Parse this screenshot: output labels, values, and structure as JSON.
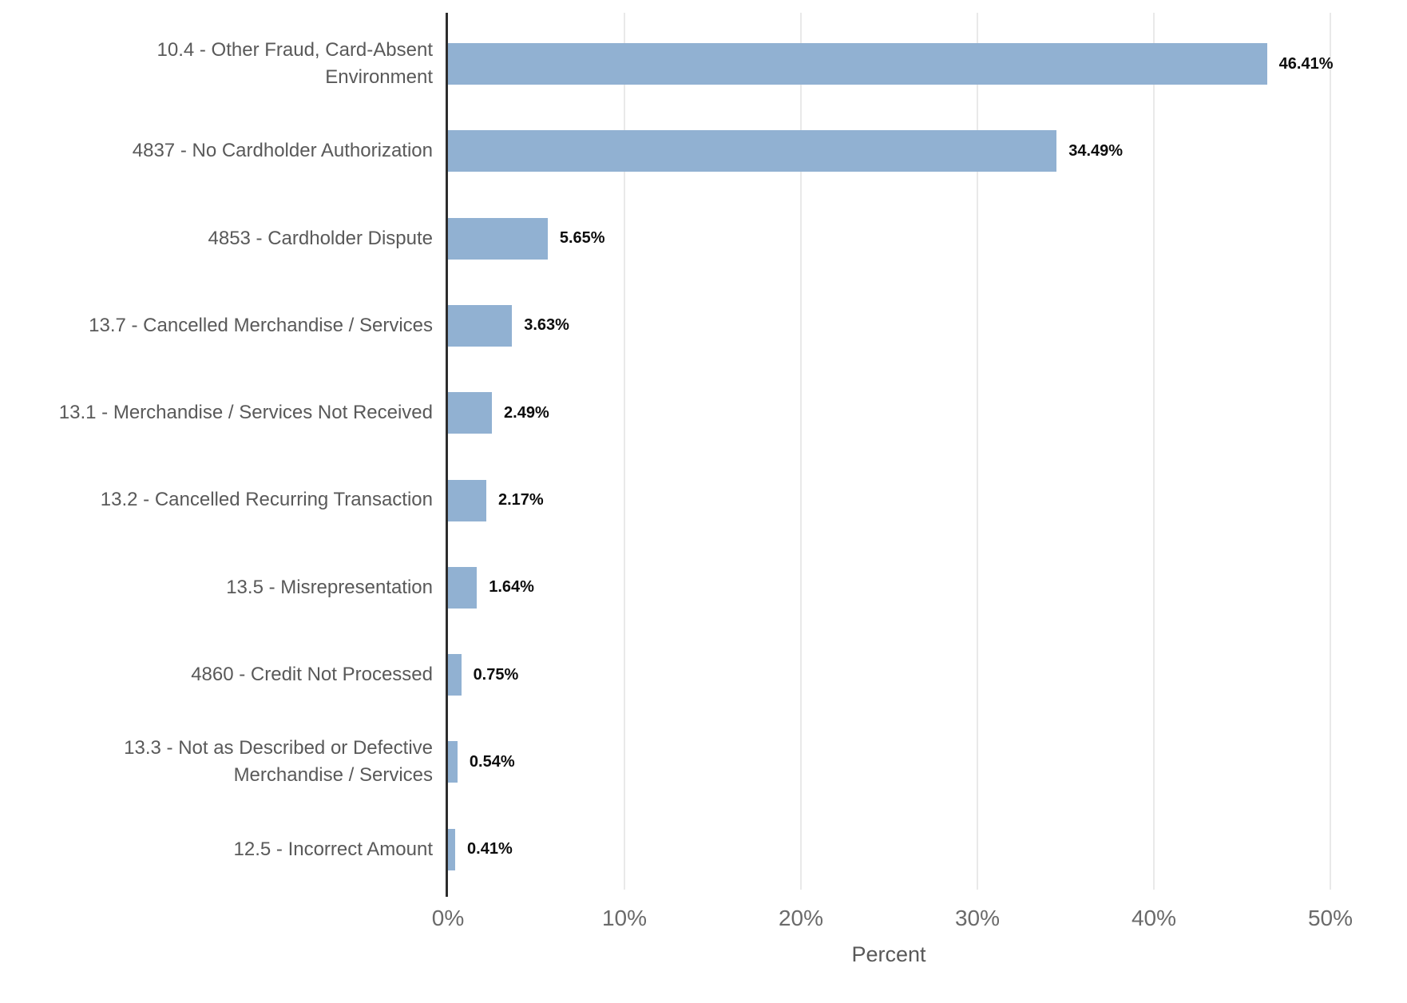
{
  "chart_data": {
    "type": "bar",
    "orientation": "horizontal",
    "title": "",
    "xlabel": "Percent",
    "ylabel": "",
    "categories": [
      "10.4 - Other Fraud, Card-Absent Environment",
      "4837 - No Cardholder Authorization",
      "4853 - Cardholder Dispute",
      "13.7 - Cancelled Merchandise / Services",
      "13.1 - Merchandise / Services Not Received",
      "13.2 - Cancelled Recurring Transaction",
      "13.5 - Misrepresentation",
      "4860 - Credit Not Processed",
      "13.3 - Not as Described or Defective Merchandise / Services",
      "12.5 - Incorrect Amount"
    ],
    "values": [
      46.41,
      34.49,
      5.65,
      3.63,
      2.49,
      2.17,
      1.64,
      0.75,
      0.54,
      0.41
    ],
    "value_labels": [
      "46.41%",
      "34.49%",
      "5.65%",
      "3.63%",
      "2.49%",
      "2.17%",
      "1.64%",
      "0.75%",
      "0.54%",
      "0.41%"
    ],
    "x_tick_labels": [
      "0%",
      "10%",
      "20%",
      "30%",
      "40%",
      "50%"
    ],
    "x_tick_values": [
      0,
      10,
      20,
      30,
      40,
      50
    ],
    "xlim": [
      0,
      50
    ],
    "grid": "vertical-gridlines",
    "legend_position": "none",
    "colors": {
      "bar": "#91B1D2",
      "category_label": "#595959",
      "tick_label": "#6A6A6A",
      "value_label": "#0D0D0D",
      "gridline": "#E9E9E9",
      "axis_line": "#2D2D2D",
      "background": "#FFFFFF"
    }
  }
}
